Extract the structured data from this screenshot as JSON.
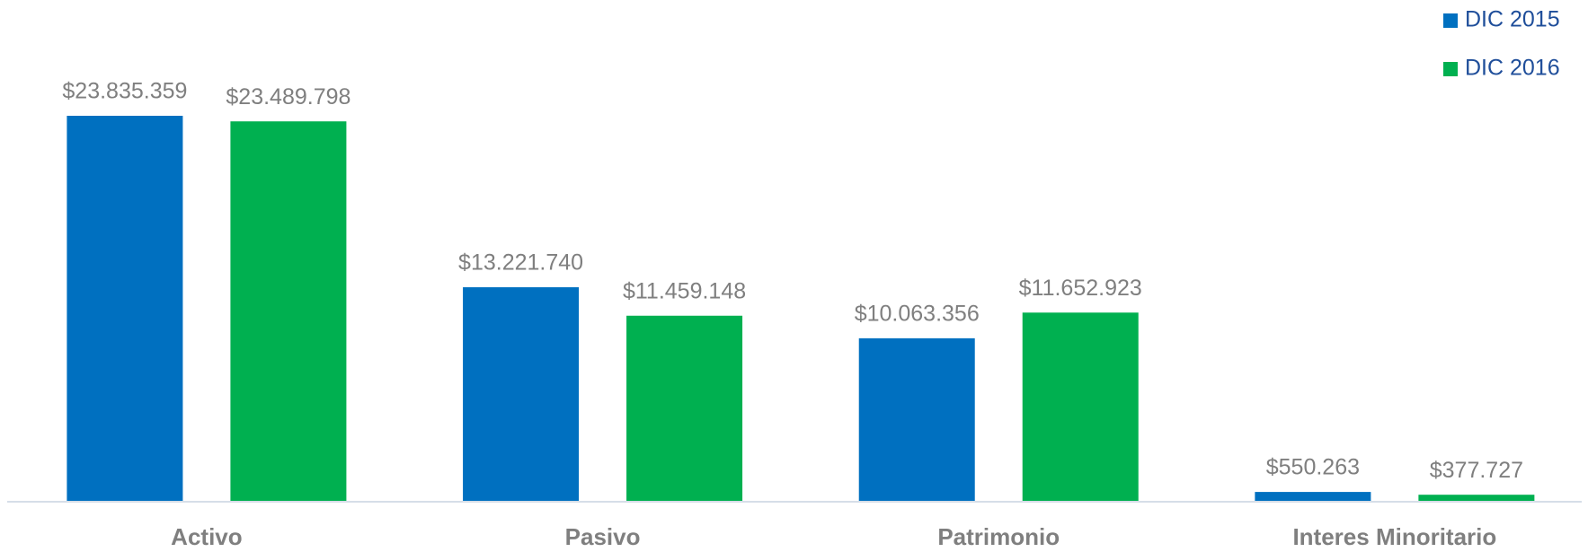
{
  "chart_data": {
    "type": "bar",
    "categories": [
      "Activo",
      "Pasivo",
      "Patrimonio",
      "Interes Minoritario"
    ],
    "series": [
      {
        "name": "DIC 2015",
        "color": "#0070c0",
        "values": [
          23835359,
          13221740,
          10063356,
          550263
        ],
        "value_labels": [
          "$23.835.359",
          "$13.221.740",
          "$10.063.356",
          "$550.263"
        ]
      },
      {
        "name": "DIC 2016",
        "color": "#00b050",
        "values": [
          23489798,
          11459148,
          11652923,
          377727
        ],
        "value_labels": [
          "$23.489.798",
          "$11.459.148",
          "$11.652.923",
          "$377.727"
        ]
      }
    ],
    "legend": "top-right"
  }
}
